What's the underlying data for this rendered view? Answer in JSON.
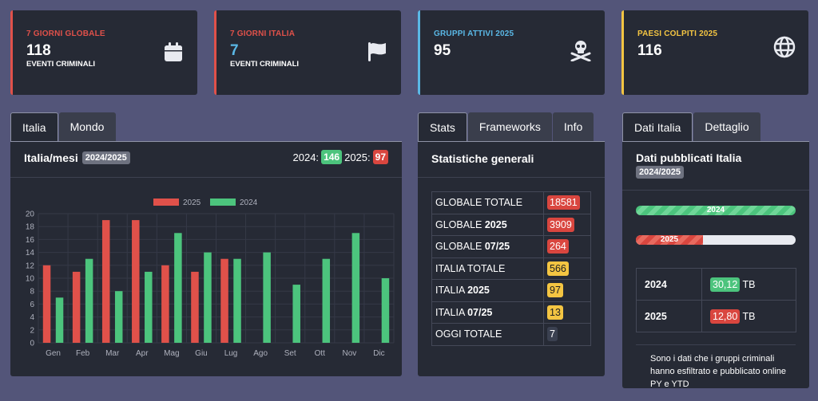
{
  "kpis": [
    {
      "label": "7 GIORNI GLOBALE",
      "value": "118",
      "sub": "EVENTI CRIMINALI",
      "color": "#e0514a",
      "icon": "calendar-icon"
    },
    {
      "label": "7 GIORNI ITALIA",
      "value": "7",
      "sub": "EVENTI CRIMINALI",
      "color": "#e0514a",
      "valueColor": "#5ab8e6",
      "icon": "flag-icon"
    },
    {
      "label": "GRUPPI ATTIVI 2025",
      "value": "95",
      "sub": "",
      "color": "#5ab8e6",
      "icon": "skull-crossbones-icon"
    },
    {
      "label": "PAESI COLPITI 2025",
      "value": "116",
      "sub": "",
      "color": "#f4c542",
      "icon": "globe-icon"
    }
  ],
  "left": {
    "tabs": [
      "Italia",
      "Mondo"
    ],
    "title": "Italia/mesi",
    "badge": "2024/2025",
    "count2024_label": "2024:",
    "count2024": "146",
    "count2025_label": "2025:",
    "count2025": "97"
  },
  "chart_data": {
    "type": "bar",
    "categories": [
      "Gen",
      "Feb",
      "Mar",
      "Apr",
      "Mag",
      "Giu",
      "Lug",
      "Ago",
      "Set",
      "Ott",
      "Nov",
      "Dic"
    ],
    "series": [
      {
        "name": "2025",
        "color": "#e0514a",
        "values": [
          12,
          11,
          19,
          19,
          12,
          11,
          13,
          0,
          0,
          0,
          0,
          0
        ]
      },
      {
        "name": "2024",
        "color": "#4cc47d",
        "values": [
          7,
          13,
          8,
          11,
          17,
          14,
          13,
          14,
          9,
          13,
          17,
          10
        ]
      }
    ],
    "ylim": [
      0,
      20
    ],
    "yticks": [
      0,
      2,
      4,
      6,
      8,
      10,
      12,
      14,
      16,
      18,
      20
    ],
    "legend": "top-center",
    "grid": true
  },
  "stats": {
    "tabs": [
      "Stats",
      "Frameworks",
      "Info"
    ],
    "title": "Statistiche generali",
    "rows": [
      {
        "label": "GLOBALE TOTALE",
        "bold": "",
        "value": "18581",
        "cls": "b-red"
      },
      {
        "label": "GLOBALE ",
        "bold": "2025",
        "value": "3909",
        "cls": "b-red"
      },
      {
        "label": "GLOBALE ",
        "bold": "07/25",
        "value": "264",
        "cls": "b-red"
      },
      {
        "label": "ITALIA TOTALE",
        "bold": "",
        "value": "566",
        "cls": "b-yellow"
      },
      {
        "label": "ITALIA ",
        "bold": "2025",
        "value": "97",
        "cls": "b-yellow"
      },
      {
        "label": "ITALIA ",
        "bold": "07/25",
        "value": "13",
        "cls": "b-yellow"
      },
      {
        "label": "OGGI TOTALE",
        "bold": "",
        "value": "7",
        "cls": "b-dark"
      }
    ]
  },
  "dati": {
    "tabs": [
      "Dati Italia",
      "Dettaglio"
    ],
    "title": "Dati pubblicati Italia",
    "badge": "2024/2025",
    "bars": [
      {
        "label": "2024",
        "progress": 1.0
      },
      {
        "label": "2025",
        "progress": 0.42
      }
    ],
    "table": [
      {
        "year": "2024",
        "value": "30,12",
        "unit": "TB",
        "cls": "b-green"
      },
      {
        "year": "2025",
        "value": "12,80",
        "unit": "TB",
        "cls": "b-red"
      }
    ],
    "note": "Sono i dati che i gruppi criminali hanno esfiltrato e pubblicato online PY e YTD"
  }
}
